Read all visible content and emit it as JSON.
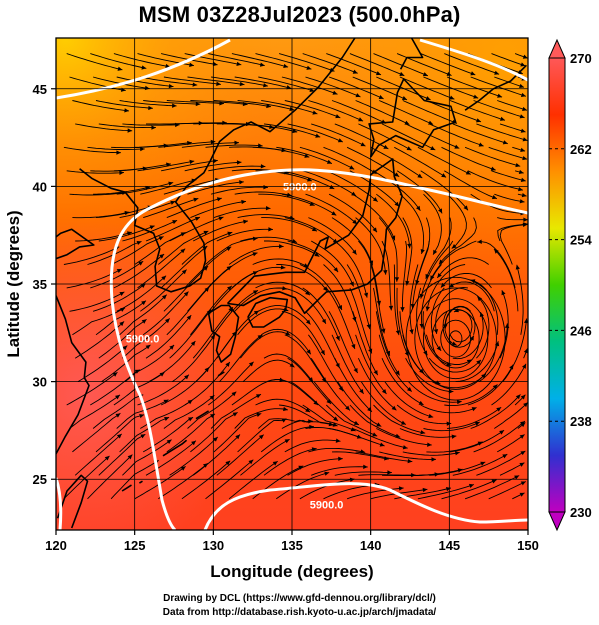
{
  "title": "MSM 03Z28Jul2023 (500.0hPa)",
  "xaxis": {
    "label": "Longitude (degrees)",
    "ticks": [
      {
        "value": 120,
        "label": "120"
      },
      {
        "value": 125,
        "label": "125"
      },
      {
        "value": 130,
        "label": "130"
      },
      {
        "value": 135,
        "label": "135"
      },
      {
        "value": 140,
        "label": "140"
      },
      {
        "value": 145,
        "label": "145"
      },
      {
        "value": 150,
        "label": "150"
      }
    ],
    "range": [
      120,
      150
    ]
  },
  "yaxis": {
    "label": "Latitude  (degrees)",
    "ticks": [
      {
        "value": 25,
        "label": "25"
      },
      {
        "value": 30,
        "label": "30"
      },
      {
        "value": 35,
        "label": "35"
      },
      {
        "value": 40,
        "label": "40"
      },
      {
        "value": 45,
        "label": "45"
      }
    ],
    "range": [
      22.4,
      47.6
    ]
  },
  "colorbar": {
    "range": [
      230,
      270
    ],
    "ticks": [
      {
        "value": 270,
        "label": "270"
      },
      {
        "value": 262,
        "label": "262"
      },
      {
        "value": 254,
        "label": "254"
      },
      {
        "value": 246,
        "label": "246"
      },
      {
        "value": 238,
        "label": "238"
      },
      {
        "value": 230,
        "label": "230"
      }
    ],
    "colors": [
      "#c000c0",
      "#3030d0",
      "#00b0e8",
      "#00c080",
      "#40d000",
      "#e8e800",
      "#ff9000",
      "#ff3000",
      "#ff5858"
    ]
  },
  "contours": [
    {
      "label": "5900.0",
      "lon": 135.5,
      "lat": 40.0
    },
    {
      "label": "5900.0",
      "lon": 125.5,
      "lat": 32.2
    },
    {
      "label": "5900.0",
      "lon": 137.2,
      "lat": 23.7
    }
  ],
  "vortex": {
    "lon": 145.4,
    "lat": 32.2
  },
  "footer": {
    "line1": "Drawing by DCL (https://www.gfd-dennou.org/library/dcl/)",
    "line2": "Data from http://database.rish.kyoto-u.ac.jp/arch/jmadata/"
  }
}
